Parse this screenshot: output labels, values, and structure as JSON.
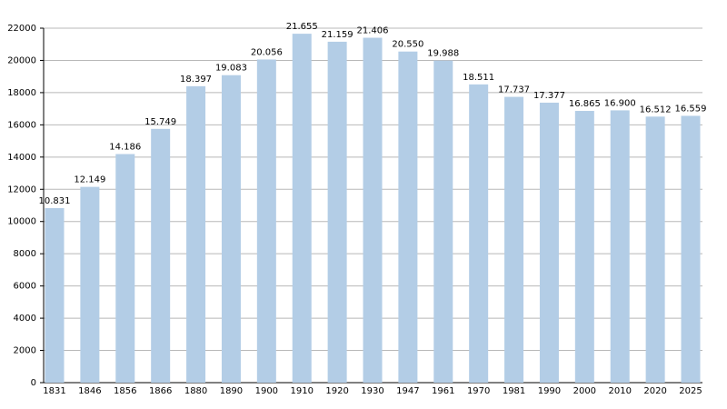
{
  "chart_data": {
    "type": "bar",
    "categories": [
      "1831",
      "1846",
      "1856",
      "1866",
      "1880",
      "1890",
      "1900",
      "1910",
      "1920",
      "1930",
      "1947",
      "1961",
      "1970",
      "1981",
      "1990",
      "2000",
      "2010",
      "2020",
      "2025"
    ],
    "values": [
      10831,
      12149,
      14186,
      15749,
      18397,
      19083,
      20056,
      21655,
      21159,
      21406,
      20550,
      19988,
      18511,
      17737,
      17377,
      16865,
      16900,
      16512,
      16559
    ],
    "value_labels": [
      "10.831",
      "12.149",
      "14.186",
      "15.749",
      "18.397",
      "19.083",
      "20.056",
      "21.655",
      "21.159",
      "21.406",
      "20.550",
      "19.988",
      "18.511",
      "17.737",
      "17.377",
      "16.865",
      "16.900",
      "16.512",
      "16.559"
    ],
    "color": "#b3cde6",
    "ylim": [
      0,
      22000
    ],
    "yticks": [
      0,
      2000,
      4000,
      6000,
      8000,
      10000,
      12000,
      14000,
      16000,
      18000,
      20000,
      22000
    ],
    "grid": true
  }
}
